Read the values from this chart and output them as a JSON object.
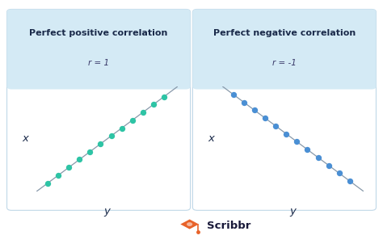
{
  "bg_color": "#ffffff",
  "card_bg_top": "#d4eaf5",
  "card_bg_bottom": "#ffffff",
  "card_border": "#c0d8e8",
  "title1": "Perfect positive correlation",
  "title2": "Perfect negative correlation",
  "subtitle1": "r = 1",
  "subtitle2": "r = -1",
  "dot_color_pos": "#2ec4a5",
  "dot_color_neg": "#4a8fd4",
  "line_color": "#8899aa",
  "axis_color": "#1a2a4a",
  "title_color": "#1a2a4a",
  "subtitle_color": "#3a3a6a",
  "xlabel": "y",
  "ylabel": "x",
  "title_fontsize": 8.0,
  "subtitle_fontsize": 7.5,
  "label_fontsize": 9.5,
  "scribbr_color": "#e8632a",
  "scribbr_text_color": "#1a1a3a",
  "scribbr_fontsize": 9.5
}
